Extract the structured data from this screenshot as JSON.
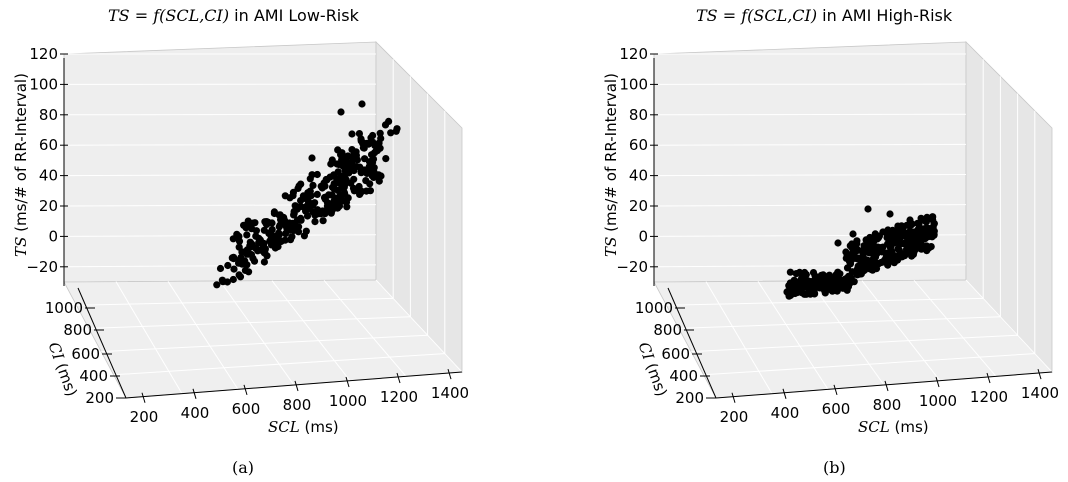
{
  "charts": [
    {
      "title_math": "TS = f(SCL,CI)",
      "title_rest": " in AMI Low-Risk",
      "caption": "(a)"
    },
    {
      "title_math": "TS = f(SCL,CI)",
      "title_rest": " in AMI High-Risk",
      "caption": "(b)"
    }
  ],
  "chart_data": [
    {
      "type": "scatter",
      "projection": "3d",
      "title": "TS = f(SCL,CI) in AMI Low-Risk",
      "xlabel": "SCL (ms)",
      "ylabel": "CI (ms)",
      "zlabel": "TS (ms/# of RR-Interval)",
      "xlim": [
        200,
        1400
      ],
      "ylim": [
        200,
        1000
      ],
      "zlim": [
        -30,
        120
      ],
      "x_ticks": [
        "200",
        "400",
        "600",
        "800",
        "1000",
        "1200",
        "1400"
      ],
      "y_ticks": [
        "200",
        "400",
        "600",
        "800",
        "1000"
      ],
      "z_ticks": [
        "−20",
        "0",
        "20",
        "40",
        "60",
        "80",
        "100",
        "120"
      ],
      "marker_color": "#000000",
      "cluster": {
        "x_range": [
          400,
          1200
        ],
        "y_range": [
          400,
          1000
        ],
        "z_range": [
          -25,
          90
        ]
      }
    },
    {
      "type": "scatter",
      "projection": "3d",
      "title": "TS = f(SCL,CI) in AMI High-Risk",
      "xlabel": "SCL (ms)",
      "ylabel": "CI (ms)",
      "zlabel": "TS (ms/# of RR-Interval)",
      "xlim": [
        200,
        1400
      ],
      "ylim": [
        200,
        1000
      ],
      "zlim": [
        -30,
        120
      ],
      "x_ticks": [
        "200",
        "400",
        "600",
        "800",
        "1000",
        "1200",
        "1400"
      ],
      "y_ticks": [
        "200",
        "400",
        "600",
        "800",
        "1000"
      ],
      "z_ticks": [
        "−20",
        "0",
        "20",
        "40",
        "60",
        "80",
        "100",
        "120"
      ],
      "marker_color": "#000000",
      "clusters": [
        {
          "x_range": [
            300,
            550
          ],
          "y_range": [
            400,
            1000
          ],
          "z_range": [
            -30,
            -20
          ]
        },
        {
          "x_range": [
            650,
            950
          ],
          "y_range": [
            400,
            1000
          ],
          "z_range": [
            -15,
            25
          ]
        }
      ]
    }
  ]
}
